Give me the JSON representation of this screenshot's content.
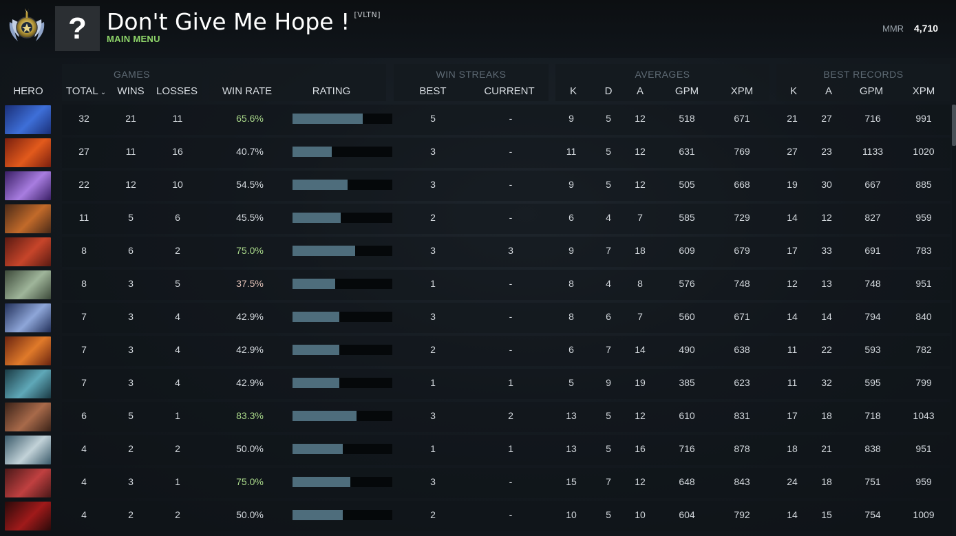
{
  "header": {
    "player_name": "Don't Give Me Hope !",
    "player_tag": "[VLTN]",
    "main_menu_label": "MAIN MENU",
    "avatar_glyph": "?",
    "rank_icon": "ancient-rank-medal-icon",
    "mmr_label": "MMR",
    "mmr_value": "4,710"
  },
  "groups": {
    "games": "GAMES",
    "win_streaks": "WIN STREAKS",
    "averages": "AVERAGES",
    "best_records": "BEST RECORDS"
  },
  "columns": {
    "hero": "HERO",
    "total": "TOTAL",
    "wins": "WINS",
    "losses": "LOSSES",
    "win_rate": "WIN RATE",
    "rating": "RATING",
    "streak_best": "BEST",
    "streak_current": "CURRENT",
    "avg_k": "K",
    "avg_d": "D",
    "avg_a": "A",
    "avg_gpm": "GPM",
    "avg_xpm": "XPM",
    "best_k": "K",
    "best_a": "A",
    "best_gpm": "GPM",
    "best_xpm": "XPM"
  },
  "colors": {
    "win_rate_good": "#a9d88a",
    "win_rate_bad": "#e3c2b8",
    "win_rate_neutral": "#d4d9de",
    "rating_bar": "#4e6d7c"
  },
  "rows": [
    {
      "hero_icon": "hero-portrait-icon",
      "hero_colors": [
        "#1a2f78",
        "#3e6fd8"
      ],
      "total": "32",
      "wins": "21",
      "losses": "11",
      "win_rate": "65.6%",
      "wr_tone": "good",
      "rating": 0.7,
      "streak_best": "5",
      "streak_current": "-",
      "k": "9",
      "d": "5",
      "a": "12",
      "gpm": "518",
      "xpm": "671",
      "bk": "21",
      "ba": "27",
      "bgpm": "716",
      "bxpm": "991"
    },
    {
      "hero_icon": "hero-portrait-icon",
      "hero_colors": [
        "#7a1f0f",
        "#e25a1c"
      ],
      "total": "27",
      "wins": "11",
      "losses": "16",
      "win_rate": "40.7%",
      "wr_tone": "neutral",
      "rating": 0.39,
      "streak_best": "3",
      "streak_current": "-",
      "k": "11",
      "d": "5",
      "a": "12",
      "gpm": "631",
      "xpm": "769",
      "bk": "27",
      "ba": "23",
      "bgpm": "1133",
      "bxpm": "1020"
    },
    {
      "hero_icon": "hero-portrait-icon",
      "hero_colors": [
        "#3a1f66",
        "#a87de0"
      ],
      "total": "22",
      "wins": "12",
      "losses": "10",
      "win_rate": "54.5%",
      "wr_tone": "neutral",
      "rating": 0.55,
      "streak_best": "3",
      "streak_current": "-",
      "k": "9",
      "d": "5",
      "a": "12",
      "gpm": "505",
      "xpm": "668",
      "bk": "19",
      "ba": "30",
      "bgpm": "667",
      "bxpm": "885"
    },
    {
      "hero_icon": "hero-portrait-icon",
      "hero_colors": [
        "#4a2a18",
        "#c26a2a"
      ],
      "total": "11",
      "wins": "5",
      "losses": "6",
      "win_rate": "45.5%",
      "wr_tone": "neutral",
      "rating": 0.48,
      "streak_best": "2",
      "streak_current": "-",
      "k": "6",
      "d": "4",
      "a": "7",
      "gpm": "585",
      "xpm": "729",
      "bk": "14",
      "ba": "12",
      "bgpm": "827",
      "bxpm": "959"
    },
    {
      "hero_icon": "hero-portrait-icon",
      "hero_colors": [
        "#5a1a12",
        "#c7452a"
      ],
      "total": "8",
      "wins": "6",
      "losses": "2",
      "win_rate": "75.0%",
      "wr_tone": "good",
      "rating": 0.63,
      "streak_best": "3",
      "streak_current": "3",
      "k": "9",
      "d": "7",
      "a": "18",
      "gpm": "609",
      "xpm": "679",
      "bk": "17",
      "ba": "33",
      "bgpm": "691",
      "bxpm": "783"
    },
    {
      "hero_icon": "hero-portrait-icon",
      "hero_colors": [
        "#3d4a3a",
        "#9fb59a"
      ],
      "total": "8",
      "wins": "3",
      "losses": "5",
      "win_rate": "37.5%",
      "wr_tone": "bad",
      "rating": 0.43,
      "streak_best": "1",
      "streak_current": "-",
      "k": "8",
      "d": "4",
      "a": "8",
      "gpm": "576",
      "xpm": "748",
      "bk": "12",
      "ba": "13",
      "bgpm": "748",
      "bxpm": "951"
    },
    {
      "hero_icon": "hero-portrait-icon",
      "hero_colors": [
        "#22305a",
        "#8ea6d8"
      ],
      "total": "7",
      "wins": "3",
      "losses": "4",
      "win_rate": "42.9%",
      "wr_tone": "neutral",
      "rating": 0.47,
      "streak_best": "3",
      "streak_current": "-",
      "k": "8",
      "d": "6",
      "a": "7",
      "gpm": "560",
      "xpm": "671",
      "bk": "14",
      "ba": "14",
      "bgpm": "794",
      "bxpm": "840"
    },
    {
      "hero_icon": "hero-portrait-icon",
      "hero_colors": [
        "#6a2410",
        "#e07a2a"
      ],
      "total": "7",
      "wins": "3",
      "losses": "4",
      "win_rate": "42.9%",
      "wr_tone": "neutral",
      "rating": 0.47,
      "streak_best": "2",
      "streak_current": "-",
      "k": "6",
      "d": "7",
      "a": "14",
      "gpm": "490",
      "xpm": "638",
      "bk": "11",
      "ba": "22",
      "bgpm": "593",
      "bxpm": "782"
    },
    {
      "hero_icon": "hero-portrait-icon",
      "hero_colors": [
        "#1a3a44",
        "#5fa8b8"
      ],
      "total": "7",
      "wins": "3",
      "losses": "4",
      "win_rate": "42.9%",
      "wr_tone": "neutral",
      "rating": 0.47,
      "streak_best": "1",
      "streak_current": "1",
      "k": "5",
      "d": "9",
      "a": "19",
      "gpm": "385",
      "xpm": "623",
      "bk": "11",
      "ba": "32",
      "bgpm": "595",
      "bxpm": "799"
    },
    {
      "hero_icon": "hero-portrait-icon",
      "hero_colors": [
        "#3a2218",
        "#a86a4a"
      ],
      "total": "6",
      "wins": "5",
      "losses": "1",
      "win_rate": "83.3%",
      "wr_tone": "good",
      "rating": 0.64,
      "streak_best": "3",
      "streak_current": "2",
      "k": "13",
      "d": "5",
      "a": "12",
      "gpm": "610",
      "xpm": "831",
      "bk": "17",
      "ba": "18",
      "bgpm": "718",
      "bxpm": "1043"
    },
    {
      "hero_icon": "hero-portrait-icon",
      "hero_colors": [
        "#3a5a6a",
        "#c2d2d8"
      ],
      "total": "4",
      "wins": "2",
      "losses": "2",
      "win_rate": "50.0%",
      "wr_tone": "neutral",
      "rating": 0.5,
      "streak_best": "1",
      "streak_current": "1",
      "k": "13",
      "d": "5",
      "a": "16",
      "gpm": "716",
      "xpm": "878",
      "bk": "18",
      "ba": "21",
      "bgpm": "838",
      "bxpm": "951"
    },
    {
      "hero_icon": "hero-portrait-icon",
      "hero_colors": [
        "#4a1818",
        "#c04040"
      ],
      "total": "4",
      "wins": "3",
      "losses": "1",
      "win_rate": "75.0%",
      "wr_tone": "good",
      "rating": 0.58,
      "streak_best": "3",
      "streak_current": "-",
      "k": "15",
      "d": "7",
      "a": "12",
      "gpm": "648",
      "xpm": "843",
      "bk": "24",
      "ba": "18",
      "bgpm": "751",
      "bxpm": "959"
    },
    {
      "hero_icon": "hero-portrait-icon",
      "hero_colors": [
        "#2a0a0a",
        "#a01a1a"
      ],
      "total": "4",
      "wins": "2",
      "losses": "2",
      "win_rate": "50.0%",
      "wr_tone": "neutral",
      "rating": 0.5,
      "streak_best": "2",
      "streak_current": "-",
      "k": "10",
      "d": "5",
      "a": "10",
      "gpm": "604",
      "xpm": "792",
      "bk": "14",
      "ba": "15",
      "bgpm": "754",
      "bxpm": "1009"
    }
  ]
}
